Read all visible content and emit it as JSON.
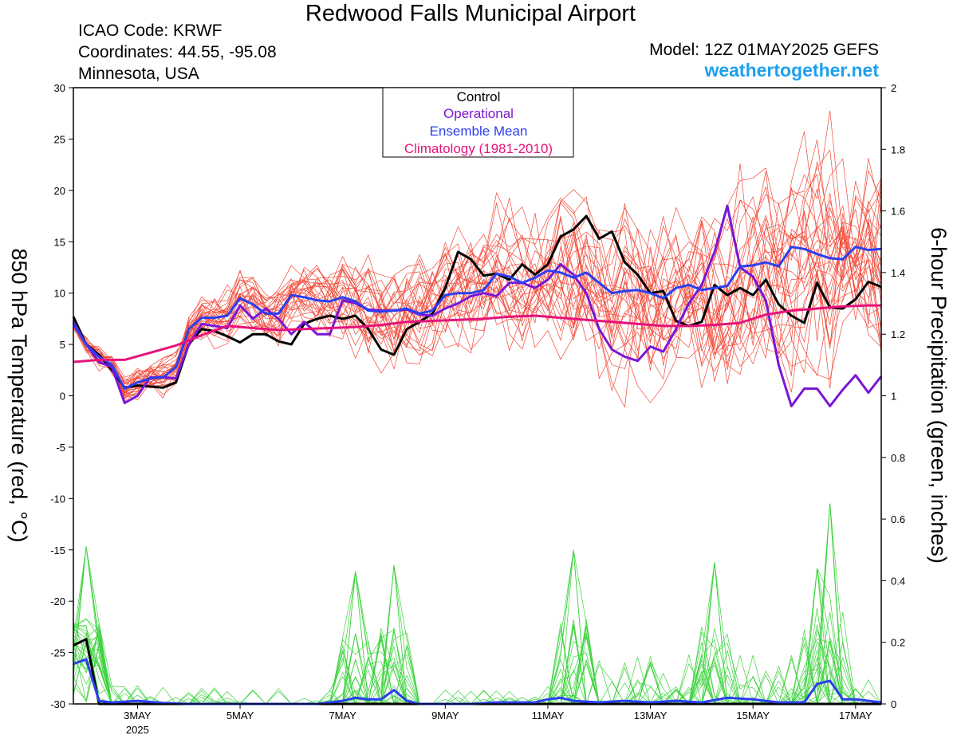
{
  "header": {
    "title": "Redwood Falls Municipal Airport",
    "icao": "ICAO Code: KRWF",
    "coordinates": "Coordinates: 44.55, -95.08",
    "location": "Minnesota, USA",
    "model": "Model: 12Z 01MAY2025 GEFS",
    "website": "weathertogether.net"
  },
  "colors": {
    "control": "#000000",
    "operational": "#7a16d6",
    "ensemble_mean": "#2a3ff0",
    "climatology": "#e8127c",
    "members_temp": "#f24a3a",
    "members_precip": "#3fd33f"
  },
  "chart_data": {
    "type": "line",
    "title": "Redwood Falls Municipal Airport",
    "xlabel": "",
    "ylabel": "850 hPa Temperature (red, °C)",
    "y2label": "6-hour Precipitation (green, inches)",
    "ylim": [
      -30,
      30
    ],
    "y2lim": [
      0,
      2
    ],
    "xlim": [
      1.75,
      17.5
    ],
    "x_unit": "day of May 2025 (UTC, 6-hour steps)",
    "x_ticks": [
      {
        "x": 3,
        "label": "3MAY",
        "sublabel": "2025"
      },
      {
        "x": 5,
        "label": "5MAY"
      },
      {
        "x": 7,
        "label": "7MAY"
      },
      {
        "x": 9,
        "label": "9MAY"
      },
      {
        "x": 11,
        "label": "11MAY"
      },
      {
        "x": 13,
        "label": "13MAY"
      },
      {
        "x": 15,
        "label": "15MAY"
      },
      {
        "x": 17,
        "label": "17MAY"
      }
    ],
    "y_ticks": [
      30,
      25,
      20,
      15,
      10,
      5,
      0,
      -5,
      -10,
      -15,
      -20,
      -25,
      -30
    ],
    "y2_ticks": [
      {
        "v": 2,
        "label": "2"
      },
      {
        "v": 1.8,
        "label": "1.8"
      },
      {
        "v": 1.6,
        "label": "1.6"
      },
      {
        "v": 1.4,
        "label": "1.4"
      },
      {
        "v": 1.2,
        "label": "1.2"
      },
      {
        "v": 1.0,
        "label": "1"
      },
      {
        "v": 0.8,
        "label": "0.8"
      },
      {
        "v": 0.6,
        "label": "0.6"
      },
      {
        "v": 0.4,
        "label": "0.4"
      },
      {
        "v": 0.2,
        "label": "0.2"
      },
      {
        "v": 0,
        "label": "0"
      }
    ],
    "legend": {
      "position": "top-center",
      "entries": [
        {
          "name": "Control",
          "color": "#000000"
        },
        {
          "name": "Operational",
          "color": "#7a16d6"
        },
        {
          "name": "Ensemble Mean",
          "color": "#2a3ff0"
        },
        {
          "name": "Climatology (1981-2010)",
          "color": "#e8127c"
        }
      ]
    },
    "series": [
      {
        "name": "Control",
        "kind": "temperature",
        "points": [
          [
            1.75,
            7.7
          ],
          [
            2.0,
            5.0
          ],
          [
            2.25,
            4.0
          ],
          [
            2.5,
            2.5
          ],
          [
            2.75,
            0.8
          ],
          [
            3.0,
            1.0
          ],
          [
            3.25,
            0.9
          ],
          [
            3.5,
            0.8
          ],
          [
            3.75,
            1.3
          ],
          [
            4.0,
            5.0
          ],
          [
            4.25,
            6.5
          ],
          [
            4.5,
            6.3
          ],
          [
            4.75,
            5.8
          ],
          [
            5.0,
            5.2
          ],
          [
            5.25,
            6.0
          ],
          [
            5.5,
            6.0
          ],
          [
            5.75,
            5.3
          ],
          [
            6.0,
            5.0
          ],
          [
            6.25,
            7.0
          ],
          [
            6.5,
            7.5
          ],
          [
            6.75,
            7.8
          ],
          [
            7.0,
            7.5
          ],
          [
            7.25,
            7.8
          ],
          [
            7.5,
            6.5
          ],
          [
            7.75,
            4.5
          ],
          [
            8.0,
            4.0
          ],
          [
            8.25,
            6.5
          ],
          [
            8.5,
            7.2
          ],
          [
            8.75,
            8.0
          ],
          [
            9.0,
            10.5
          ],
          [
            9.25,
            14.0
          ],
          [
            9.5,
            13.3
          ],
          [
            9.75,
            11.7
          ],
          [
            10.0,
            11.9
          ],
          [
            10.25,
            11.3
          ],
          [
            10.5,
            12.8
          ],
          [
            10.75,
            11.8
          ],
          [
            11.0,
            12.8
          ],
          [
            11.25,
            15.5
          ],
          [
            11.5,
            16.2
          ],
          [
            11.75,
            17.5
          ],
          [
            12.0,
            15.3
          ],
          [
            12.25,
            16.0
          ],
          [
            12.5,
            13.0
          ],
          [
            12.75,
            11.8
          ],
          [
            13.0,
            10.0
          ],
          [
            13.25,
            10.2
          ],
          [
            13.5,
            7.3
          ],
          [
            13.75,
            6.8
          ],
          [
            14.0,
            7.2
          ],
          [
            14.25,
            10.8
          ],
          [
            14.5,
            9.8
          ],
          [
            14.75,
            10.5
          ],
          [
            15.0,
            9.8
          ],
          [
            15.25,
            11.3
          ],
          [
            15.5,
            8.9
          ],
          [
            15.75,
            7.8
          ],
          [
            16.0,
            7.1
          ],
          [
            16.25,
            11.0
          ],
          [
            16.5,
            8.6
          ],
          [
            16.75,
            8.5
          ],
          [
            17.0,
            9.4
          ],
          [
            17.25,
            11.1
          ],
          [
            17.5,
            10.6
          ]
        ]
      },
      {
        "name": "Operational",
        "kind": "temperature",
        "points": [
          [
            1.75,
            7.2
          ],
          [
            2.0,
            5.0
          ],
          [
            2.25,
            3.3
          ],
          [
            2.5,
            2.8
          ],
          [
            2.75,
            -0.7
          ],
          [
            3.0,
            0.0
          ],
          [
            3.25,
            1.8
          ],
          [
            3.5,
            1.8
          ],
          [
            3.75,
            1.7
          ],
          [
            4.0,
            5.0
          ],
          [
            4.25,
            7.0
          ],
          [
            4.5,
            6.8
          ],
          [
            4.75,
            6.6
          ],
          [
            5.0,
            8.8
          ],
          [
            5.25,
            7.5
          ],
          [
            5.5,
            8.5
          ],
          [
            5.75,
            7.5
          ],
          [
            6.0,
            6.0
          ],
          [
            6.25,
            7.2
          ],
          [
            6.5,
            6.0
          ],
          [
            6.75,
            6.0
          ],
          [
            7.0,
            9.3
          ],
          [
            7.25,
            9.0
          ],
          [
            7.5,
            8.4
          ],
          [
            7.75,
            8.3
          ],
          [
            8.0,
            8.3
          ],
          [
            8.25,
            8.4
          ],
          [
            8.5,
            7.9
          ],
          [
            8.75,
            7.8
          ],
          [
            9.0,
            8.5
          ],
          [
            9.25,
            9.0
          ],
          [
            9.5,
            9.7
          ],
          [
            9.75,
            10.0
          ],
          [
            10.0,
            9.7
          ],
          [
            10.25,
            11.0
          ],
          [
            10.5,
            11.0
          ],
          [
            10.75,
            10.5
          ],
          [
            11.0,
            11.3
          ],
          [
            11.25,
            12.8
          ],
          [
            11.5,
            11.8
          ],
          [
            11.75,
            10.0
          ],
          [
            12.0,
            6.5
          ],
          [
            12.25,
            4.5
          ],
          [
            12.5,
            3.8
          ],
          [
            12.75,
            3.4
          ],
          [
            13.0,
            4.8
          ],
          [
            13.25,
            4.3
          ],
          [
            13.5,
            6.5
          ],
          [
            13.75,
            9.0
          ],
          [
            14.0,
            10.8
          ],
          [
            14.25,
            14.0
          ],
          [
            14.5,
            18.5
          ],
          [
            14.75,
            12.5
          ],
          [
            15.0,
            11.6
          ],
          [
            15.25,
            9.3
          ],
          [
            15.5,
            3.0
          ],
          [
            15.75,
            -1.0
          ],
          [
            16.0,
            0.7
          ],
          [
            16.25,
            0.7
          ],
          [
            16.5,
            -1.0
          ],
          [
            16.75,
            0.6
          ],
          [
            17.0,
            2.0
          ],
          [
            17.25,
            0.3
          ],
          [
            17.5,
            1.9
          ]
        ]
      },
      {
        "name": "Ensemble Mean",
        "kind": "temperature",
        "points": [
          [
            1.75,
            7.0
          ],
          [
            2.0,
            5.0
          ],
          [
            2.25,
            3.8
          ],
          [
            2.5,
            3.0
          ],
          [
            2.75,
            0.7
          ],
          [
            3.0,
            1.3
          ],
          [
            3.25,
            1.7
          ],
          [
            3.5,
            1.8
          ],
          [
            3.75,
            2.8
          ],
          [
            4.0,
            6.5
          ],
          [
            4.25,
            7.6
          ],
          [
            4.5,
            7.6
          ],
          [
            4.75,
            7.8
          ],
          [
            5.0,
            9.5
          ],
          [
            5.25,
            8.9
          ],
          [
            5.5,
            8.0
          ],
          [
            5.75,
            8.0
          ],
          [
            6.0,
            9.8
          ],
          [
            6.25,
            9.6
          ],
          [
            6.5,
            9.3
          ],
          [
            6.75,
            9.2
          ],
          [
            7.0,
            9.6
          ],
          [
            7.25,
            9.2
          ],
          [
            7.5,
            8.3
          ],
          [
            7.75,
            8.2
          ],
          [
            8.0,
            8.3
          ],
          [
            8.25,
            8.5
          ],
          [
            8.5,
            8.0
          ],
          [
            8.75,
            8.3
          ],
          [
            9.0,
            9.8
          ],
          [
            9.25,
            10.0
          ],
          [
            9.5,
            10.0
          ],
          [
            9.75,
            10.3
          ],
          [
            10.0,
            11.9
          ],
          [
            10.25,
            11.6
          ],
          [
            10.5,
            11.0
          ],
          [
            10.75,
            11.5
          ],
          [
            11.0,
            12.2
          ],
          [
            11.25,
            12.0
          ],
          [
            11.5,
            11.5
          ],
          [
            11.75,
            12.0
          ],
          [
            12.0,
            11.0
          ],
          [
            12.25,
            10.0
          ],
          [
            12.5,
            10.2
          ],
          [
            12.75,
            10.3
          ],
          [
            13.0,
            10.0
          ],
          [
            13.25,
            9.5
          ],
          [
            13.5,
            10.5
          ],
          [
            13.75,
            10.8
          ],
          [
            14.0,
            10.3
          ],
          [
            14.25,
            10.5
          ],
          [
            14.5,
            10.7
          ],
          [
            14.75,
            12.6
          ],
          [
            15.0,
            12.7
          ],
          [
            15.25,
            13.0
          ],
          [
            15.5,
            12.6
          ],
          [
            15.75,
            14.5
          ],
          [
            16.0,
            14.3
          ],
          [
            16.25,
            13.8
          ],
          [
            16.5,
            13.4
          ],
          [
            16.75,
            13.3
          ],
          [
            17.0,
            14.5
          ],
          [
            17.25,
            14.2
          ],
          [
            17.5,
            14.3
          ]
        ]
      },
      {
        "name": "Climatology (1981-2010)",
        "kind": "temperature",
        "points": [
          [
            1.75,
            3.3
          ],
          [
            2.25,
            3.5
          ],
          [
            2.75,
            3.5
          ],
          [
            3.25,
            4.2
          ],
          [
            3.75,
            4.9
          ],
          [
            4.25,
            5.9
          ],
          [
            4.75,
            6.8
          ],
          [
            5.25,
            6.6
          ],
          [
            5.75,
            6.4
          ],
          [
            6.25,
            6.5
          ],
          [
            6.75,
            6.6
          ],
          [
            7.25,
            6.7
          ],
          [
            7.75,
            6.9
          ],
          [
            8.25,
            7.2
          ],
          [
            8.75,
            7.3
          ],
          [
            9.25,
            7.4
          ],
          [
            9.75,
            7.5
          ],
          [
            10.25,
            7.7
          ],
          [
            10.75,
            7.8
          ],
          [
            11.25,
            7.6
          ],
          [
            11.75,
            7.4
          ],
          [
            12.25,
            7.2
          ],
          [
            12.75,
            7.0
          ],
          [
            13.25,
            6.8
          ],
          [
            13.75,
            6.8
          ],
          [
            14.25,
            6.9
          ],
          [
            14.75,
            7.1
          ],
          [
            15.25,
            7.9
          ],
          [
            15.75,
            8.3
          ],
          [
            16.25,
            8.5
          ],
          [
            16.75,
            8.7
          ],
          [
            17.25,
            8.8
          ],
          [
            17.5,
            8.8
          ]
        ]
      },
      {
        "name": "Control",
        "kind": "precipitation",
        "points": [
          [
            1.75,
            0.19
          ],
          [
            2.0,
            0.21
          ],
          [
            2.25,
            0.0
          ],
          [
            17.5,
            0.0
          ]
        ]
      },
      {
        "name": "Ensemble Mean",
        "kind": "precipitation",
        "points": [
          [
            1.75,
            0.13
          ],
          [
            2.0,
            0.145
          ],
          [
            2.25,
            0.01
          ],
          [
            2.5,
            0.005
          ],
          [
            3.0,
            0.01
          ],
          [
            3.5,
            0.003
          ],
          [
            4.0,
            0.0
          ],
          [
            6.5,
            0.0
          ],
          [
            7.0,
            0.01
          ],
          [
            7.25,
            0.02
          ],
          [
            7.5,
            0.015
          ],
          [
            7.75,
            0.015
          ],
          [
            8.0,
            0.045
          ],
          [
            8.25,
            0.01
          ],
          [
            8.5,
            0.0
          ],
          [
            9.5,
            0.0
          ],
          [
            10.0,
            0.005
          ],
          [
            10.75,
            0.005
          ],
          [
            11.0,
            0.015
          ],
          [
            11.25,
            0.02
          ],
          [
            11.5,
            0.01
          ],
          [
            12.0,
            0.005
          ],
          [
            12.5,
            0.01
          ],
          [
            13.0,
            0.005
          ],
          [
            13.5,
            0.01
          ],
          [
            14.0,
            0.005
          ],
          [
            14.5,
            0.02
          ],
          [
            15.0,
            0.015
          ],
          [
            15.5,
            0.005
          ],
          [
            16.0,
            0.005
          ],
          [
            16.25,
            0.065
          ],
          [
            16.5,
            0.075
          ],
          [
            16.75,
            0.015
          ],
          [
            17.0,
            0.015
          ],
          [
            17.25,
            0.01
          ],
          [
            17.5,
            0.005
          ]
        ]
      }
    ],
    "members": {
      "temperature_count": 30,
      "precipitation_count": 30,
      "temperature_range_note": "",
      "precip_peaks": [
        {
          "x": 2.0,
          "value": 0.51
        },
        {
          "x": 7.25,
          "value": 0.43
        },
        {
          "x": 8.0,
          "value": 0.45
        },
        {
          "x": 11.5,
          "value": 0.5
        },
        {
          "x": 14.25,
          "value": 0.46
        },
        {
          "x": 16.25,
          "value": 0.44
        },
        {
          "x": 16.5,
          "value": 0.65
        }
      ]
    }
  }
}
